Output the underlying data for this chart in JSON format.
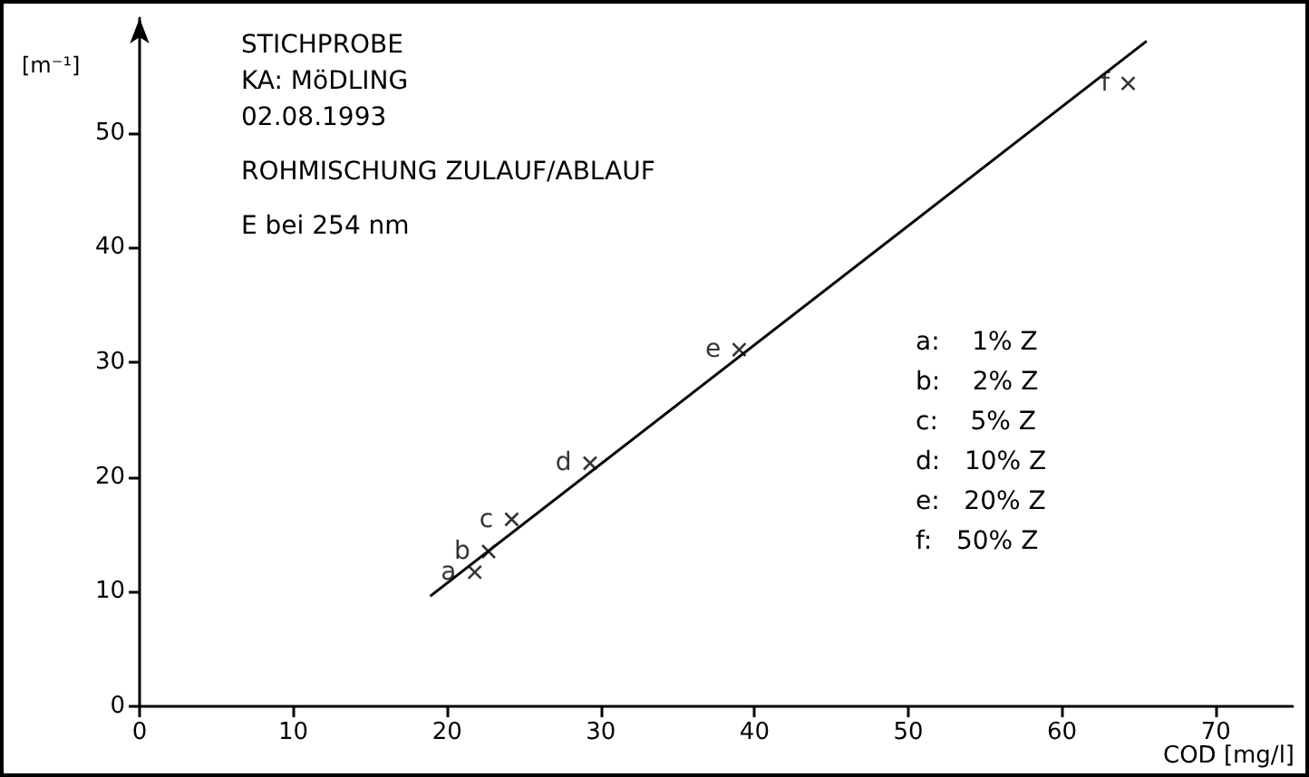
{
  "chart_data": {
    "type": "scatter",
    "title": "STICHPROBE",
    "xlabel": "COD [mg/l]",
    "ylabel": "[m⁻¹]",
    "annotations": [
      "KA: MöDLING",
      "02.08.1993",
      "ROHMISCHUNG ZULAUF/ABLAUF",
      "E bei 254 nm",
      "a:    1% Z",
      "b:    2% Z",
      "c:    5% Z",
      "d:   10% Z",
      "e:   20% Z",
      "f:   50% Z"
    ],
    "series": [
      {
        "type": "scatter",
        "color": "#000000",
        "marker": "cross",
        "x": [
          21.8,
          22.7,
          24.2,
          29.3,
          39.0,
          64.3
        ],
        "values": [
          11.7,
          13.5,
          16.3,
          21.2,
          31.1,
          54.3
        ],
        "value_labels": [
          "a",
          "b",
          "c",
          "d",
          "e",
          "f"
        ]
      },
      {
        "type": "line",
        "color": "#000000",
        "marker": "none",
        "line_style": "solid",
        "x": [
          18.9,
          65.5
        ],
        "values": [
          9.6,
          58.0
        ]
      }
    ],
    "xlim": [
      0,
      75
    ],
    "ylim": [
      0,
      60
    ],
    "xticks": [
      0,
      10,
      20,
      30,
      40,
      50,
      60,
      70
    ],
    "yticks": [
      0,
      10,
      20,
      30,
      40,
      50
    ],
    "grid": false
  }
}
